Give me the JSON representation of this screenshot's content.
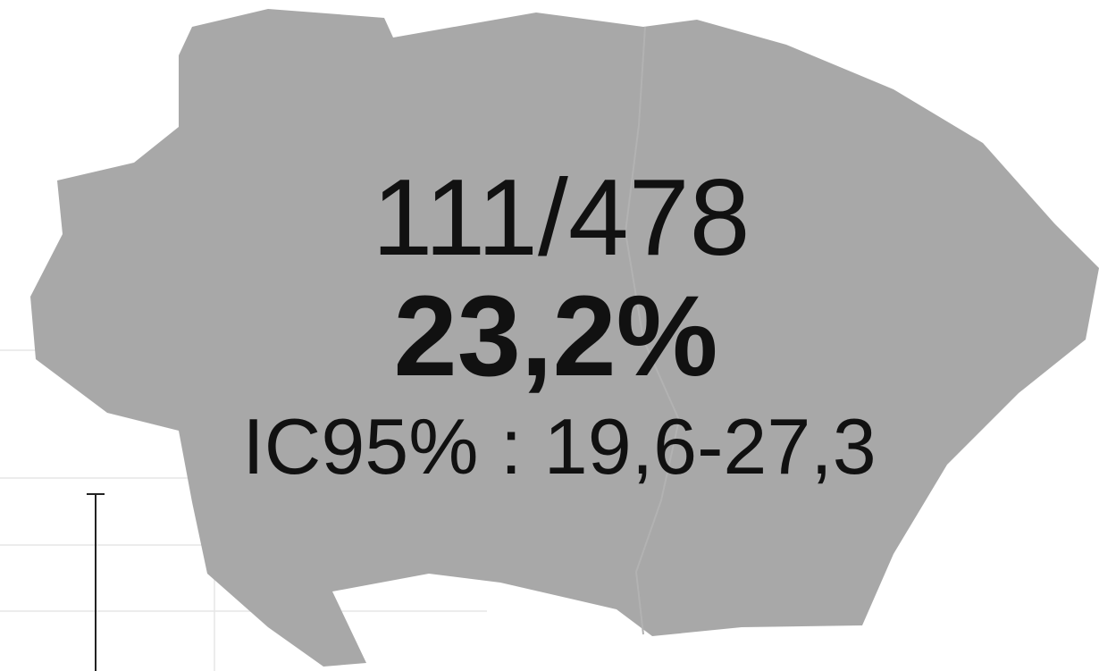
{
  "region": {
    "count": "111/478",
    "percent": "23,2%",
    "ci": "IC95% : 19,6-27,3"
  }
}
